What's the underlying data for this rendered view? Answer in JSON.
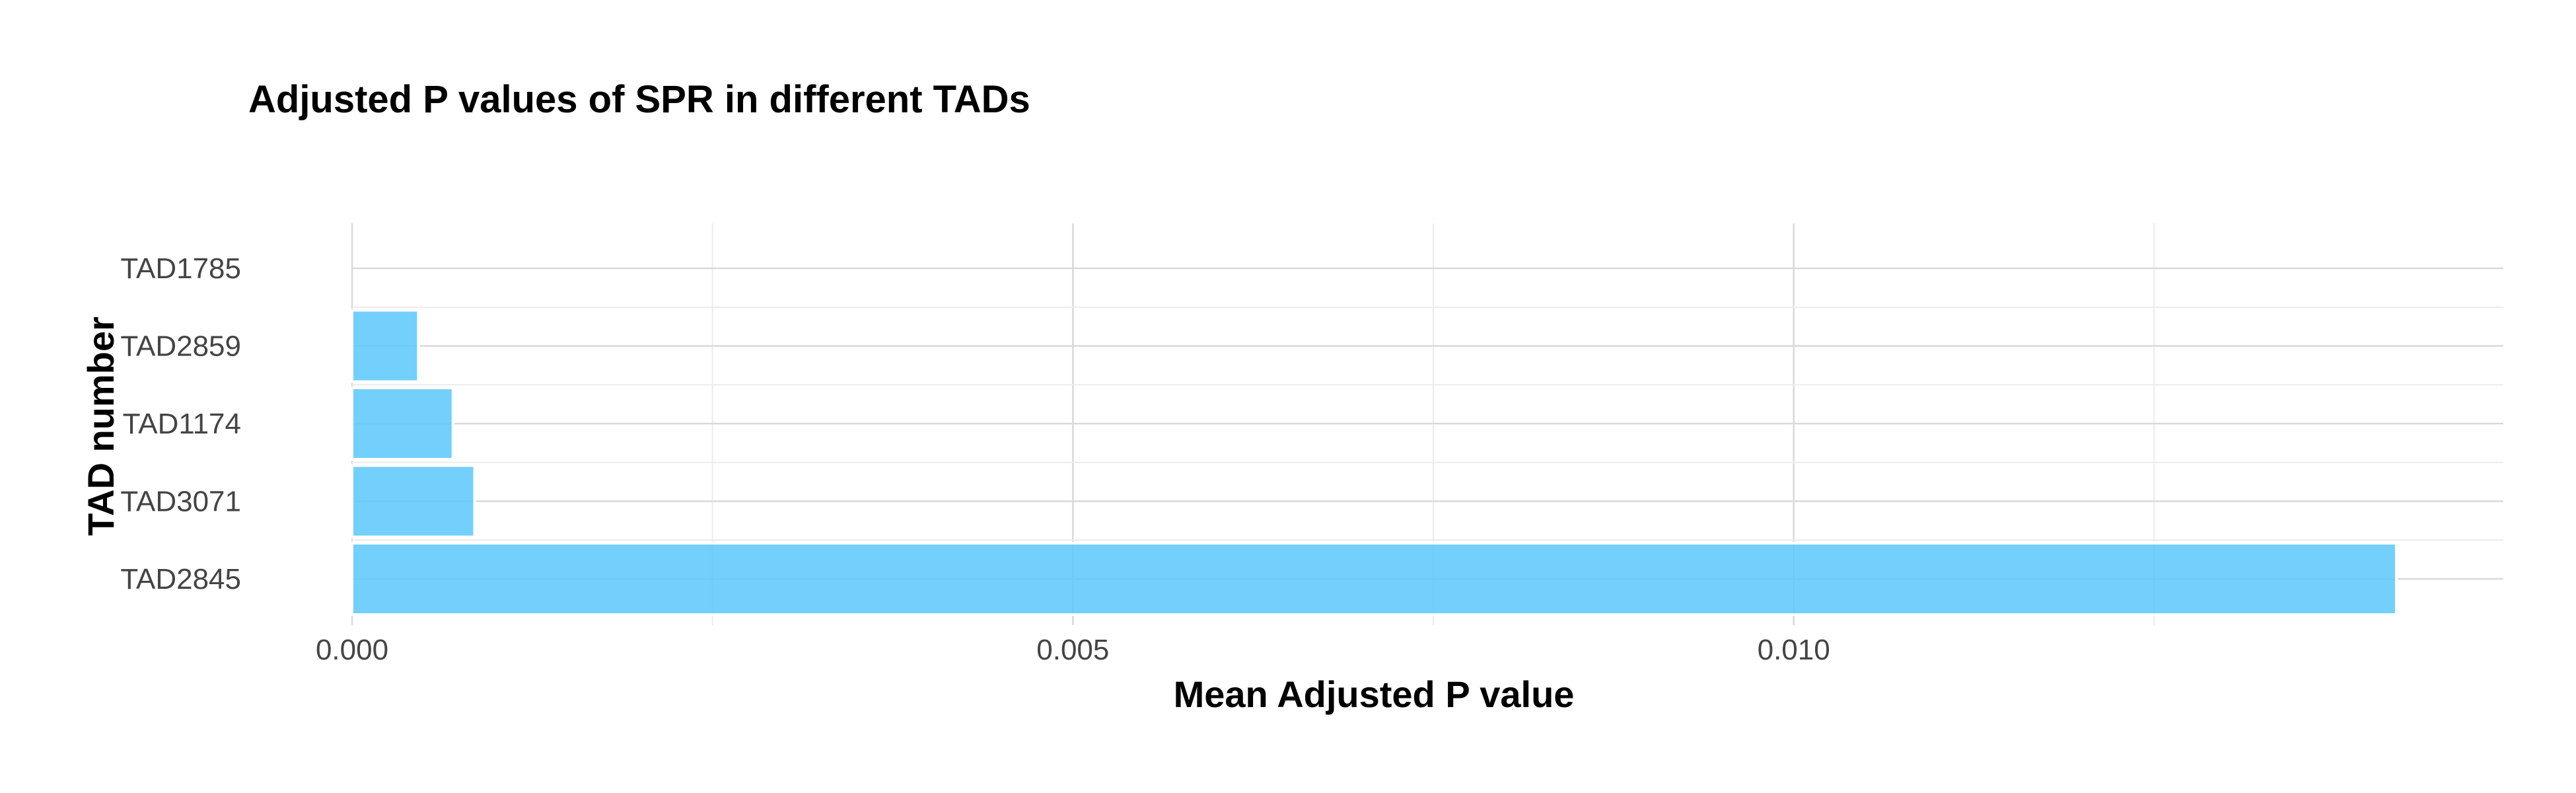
{
  "chart_data": {
    "type": "bar",
    "orientation": "horizontal",
    "title": "Adjusted P values of SPR in different TADs",
    "xlabel": "Mean Adjusted P value",
    "ylabel": "TAD number",
    "categories": [
      "TAD1785",
      "TAD2859",
      "TAD1174",
      "TAD3071",
      "TAD2845"
    ],
    "values": [
      0.0,
      0.00046,
      0.0007,
      0.00085,
      0.01418
    ],
    "xlim": [
      0,
      0.0148
    ],
    "xticks": [
      0.0,
      0.005,
      0.01
    ],
    "xtick_labels": [
      "0.000",
      "0.005",
      "0.010"
    ],
    "grid": true,
    "legend": "none",
    "bar_color": "#5bc8fb"
  }
}
